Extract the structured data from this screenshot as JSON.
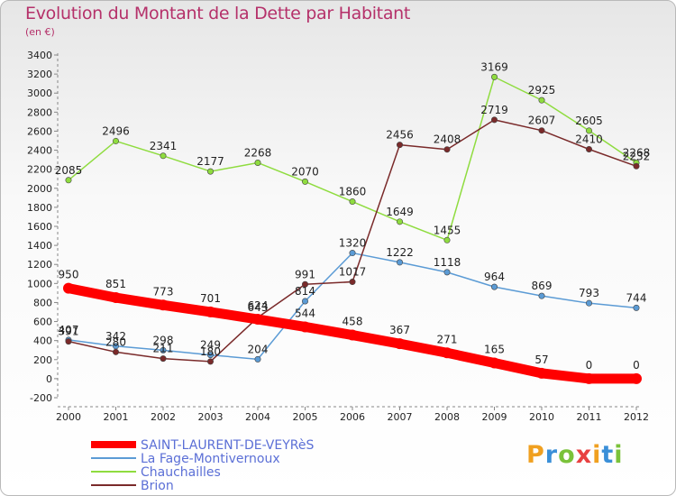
{
  "chart_data": {
    "type": "line",
    "title": "Evolution du Montant de la Dette par Habitant",
    "subtitle": "(en €)",
    "x": [
      "2000",
      "2001",
      "2002",
      "2003",
      "2004",
      "2005",
      "2006",
      "2007",
      "2008",
      "2009",
      "2010",
      "2011",
      "2012"
    ],
    "ylim": [
      -200,
      3400
    ],
    "yticks": [
      -200,
      0,
      200,
      400,
      600,
      800,
      1000,
      1200,
      1400,
      1600,
      1800,
      2000,
      2200,
      2400,
      2600,
      2800,
      3000,
      3200,
      3400
    ],
    "grid": false,
    "legend_position": "bottom-left",
    "series": [
      {
        "name": "SAINT-LAURENT-DE-VEYRèS",
        "color": "#ff0000",
        "values": [
          950,
          851,
          773,
          701,
          624,
          544,
          458,
          367,
          271,
          165,
          57,
          0,
          0
        ],
        "labels": [
          "950",
          "851",
          "773",
          "701",
          "624",
          "544",
          "458",
          "367",
          "271",
          "165",
          "57",
          "0",
          "0"
        ]
      },
      {
        "name": "La Fage-Montivernoux",
        "color": "#5b9bd5",
        "values": [
          407,
          342,
          298,
          249,
          204,
          814,
          1320,
          1222,
          1118,
          964,
          869,
          793,
          744
        ],
        "labels": [
          "407",
          "342",
          "298",
          "249",
          "204",
          "814",
          "1320",
          "1222",
          "1118",
          "964",
          "869",
          "793",
          "744"
        ]
      },
      {
        "name": "Chauchailles",
        "color": "#8fdc3f",
        "values": [
          2085,
          2496,
          2341,
          2177,
          2268,
          2070,
          1860,
          1649,
          1455,
          3169,
          2925,
          2605,
          2268
        ],
        "labels": [
          "2085",
          "2496",
          "2341",
          "2177",
          "2268",
          "2070",
          "1860",
          "1649",
          "1455",
          "3169",
          "2925",
          "2605",
          "2268"
        ]
      },
      {
        "name": "Brion",
        "color": "#7a2a2a",
        "values": [
          391,
          280,
          211,
          180,
          643,
          991,
          1017,
          2456,
          2408,
          2719,
          2607,
          2410,
          2232
        ],
        "labels": [
          "391",
          "280",
          "211",
          "180",
          "643",
          "991",
          "1017",
          "2456",
          "2408",
          "2719",
          "2607",
          "2410",
          "2232"
        ]
      }
    ]
  },
  "logo": {
    "text": "Proxiti",
    "letters": [
      "P",
      "r",
      "o",
      "x",
      "i",
      "t",
      "i"
    ],
    "colors": [
      "#f0a020",
      "#3a8fd8",
      "#7ac23a",
      "#e84040",
      "#f0a020",
      "#3a8fd8",
      "#7ac23a"
    ]
  }
}
